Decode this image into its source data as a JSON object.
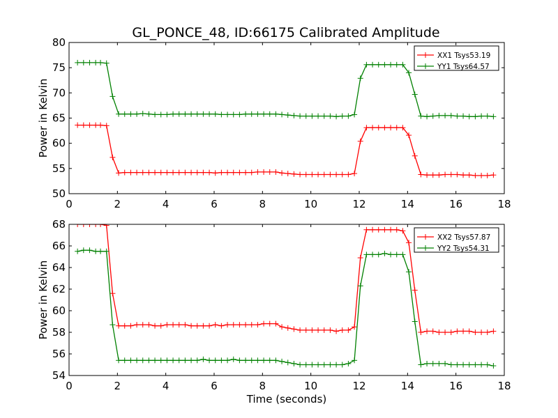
{
  "title": "GL_PONCE_48, ID:66175 Calibrated Amplitude",
  "chart_data": [
    {
      "type": "line",
      "xlabel": "",
      "ylabel": "Power in Kelvin",
      "xlim": [
        0,
        18
      ],
      "ylim": [
        50,
        80
      ],
      "xticks": [
        0,
        2,
        4,
        6,
        8,
        10,
        12,
        14,
        16,
        18
      ],
      "yticks": [
        50,
        55,
        60,
        65,
        70,
        75,
        80
      ],
      "legend_position": "top-right",
      "grid": false,
      "x": [
        0.35,
        0.6,
        0.85,
        1.1,
        1.3,
        1.55,
        1.8,
        2.05,
        2.3,
        2.55,
        2.8,
        3.05,
        3.3,
        3.55,
        3.8,
        4.05,
        4.3,
        4.55,
        4.8,
        5.05,
        5.3,
        5.55,
        5.8,
        6.05,
        6.3,
        6.55,
        6.8,
        7.05,
        7.3,
        7.55,
        7.8,
        8.05,
        8.3,
        8.55,
        8.8,
        9.05,
        9.3,
        9.55,
        9.8,
        10.05,
        10.3,
        10.55,
        10.8,
        11.05,
        11.3,
        11.55,
        11.8,
        12.05,
        12.3,
        12.55,
        12.8,
        13.05,
        13.3,
        13.55,
        13.8,
        14.05,
        14.3,
        14.55,
        14.8,
        15.05,
        15.3,
        15.55,
        15.8,
        16.05,
        16.3,
        16.55,
        16.8,
        17.05,
        17.3,
        17.55
      ],
      "series": [
        {
          "name": "XX1 Tsys53.19",
          "color": "#ff0000",
          "values": [
            63.6,
            63.6,
            63.6,
            63.6,
            63.6,
            63.5,
            57.2,
            54.1,
            54.2,
            54.2,
            54.2,
            54.2,
            54.2,
            54.2,
            54.2,
            54.2,
            54.2,
            54.2,
            54.2,
            54.2,
            54.2,
            54.2,
            54.2,
            54.1,
            54.2,
            54.2,
            54.2,
            54.2,
            54.2,
            54.2,
            54.3,
            54.3,
            54.3,
            54.3,
            54.1,
            54.0,
            53.9,
            53.8,
            53.8,
            53.8,
            53.8,
            53.8,
            53.8,
            53.8,
            53.8,
            53.8,
            54.0,
            60.4,
            63.1,
            63.1,
            63.1,
            63.1,
            63.1,
            63.1,
            63.1,
            61.6,
            57.5,
            53.8,
            53.7,
            53.7,
            53.7,
            53.8,
            53.8,
            53.8,
            53.7,
            53.7,
            53.6,
            53.6,
            53.6,
            53.7
          ]
        },
        {
          "name": "YY1 Tsys64.57",
          "color": "#008000",
          "values": [
            76.0,
            76.0,
            76.0,
            76.0,
            76.0,
            75.9,
            69.3,
            65.8,
            65.8,
            65.8,
            65.8,
            65.9,
            65.8,
            65.7,
            65.7,
            65.7,
            65.8,
            65.8,
            65.8,
            65.8,
            65.8,
            65.8,
            65.8,
            65.8,
            65.7,
            65.7,
            65.7,
            65.7,
            65.8,
            65.8,
            65.8,
            65.8,
            65.8,
            65.8,
            65.7,
            65.6,
            65.5,
            65.4,
            65.4,
            65.4,
            65.4,
            65.4,
            65.4,
            65.3,
            65.4,
            65.4,
            65.7,
            72.9,
            75.6,
            75.6,
            75.6,
            75.6,
            75.6,
            75.6,
            75.6,
            74.0,
            69.7,
            65.4,
            65.3,
            65.4,
            65.5,
            65.5,
            65.5,
            65.4,
            65.4,
            65.3,
            65.3,
            65.4,
            65.4,
            65.3
          ]
        }
      ]
    },
    {
      "type": "line",
      "xlabel": "Time (seconds)",
      "ylabel": "Power in Kelvin",
      "xlim": [
        0,
        18
      ],
      "ylim": [
        54,
        68
      ],
      "xticks": [
        0,
        2,
        4,
        6,
        8,
        10,
        12,
        14,
        16,
        18
      ],
      "yticks": [
        54,
        56,
        58,
        60,
        62,
        64,
        66,
        68
      ],
      "legend_position": "top-right",
      "grid": false,
      "x": [
        0.35,
        0.6,
        0.85,
        1.1,
        1.3,
        1.55,
        1.8,
        2.05,
        2.3,
        2.55,
        2.8,
        3.05,
        3.3,
        3.55,
        3.8,
        4.05,
        4.3,
        4.55,
        4.8,
        5.05,
        5.3,
        5.55,
        5.8,
        6.05,
        6.3,
        6.55,
        6.8,
        7.05,
        7.3,
        7.55,
        7.8,
        8.05,
        8.3,
        8.55,
        8.8,
        9.05,
        9.3,
        9.55,
        9.8,
        10.05,
        10.3,
        10.55,
        10.8,
        11.05,
        11.3,
        11.55,
        11.8,
        12.05,
        12.3,
        12.55,
        12.8,
        13.05,
        13.3,
        13.55,
        13.8,
        14.05,
        14.3,
        14.55,
        14.8,
        15.05,
        15.3,
        15.55,
        15.8,
        16.05,
        16.3,
        16.55,
        16.8,
        17.05,
        17.3,
        17.55
      ],
      "series": [
        {
          "name": "XX2 Tsys57.87",
          "color": "#ff0000",
          "values": [
            68.0,
            68.0,
            68.0,
            68.0,
            68.0,
            67.9,
            61.6,
            58.6,
            58.6,
            58.6,
            58.7,
            58.7,
            58.7,
            58.6,
            58.6,
            58.7,
            58.7,
            58.7,
            58.7,
            58.6,
            58.6,
            58.6,
            58.6,
            58.7,
            58.6,
            58.7,
            58.7,
            58.7,
            58.7,
            58.7,
            58.7,
            58.8,
            58.8,
            58.8,
            58.5,
            58.4,
            58.3,
            58.2,
            58.2,
            58.2,
            58.2,
            58.2,
            58.2,
            58.1,
            58.2,
            58.2,
            58.5,
            64.9,
            67.5,
            67.5,
            67.5,
            67.5,
            67.5,
            67.5,
            67.4,
            66.3,
            61.9,
            58.0,
            58.1,
            58.1,
            58.0,
            58.0,
            58.0,
            58.1,
            58.1,
            58.1,
            58.0,
            58.0,
            58.0,
            58.1
          ]
        },
        {
          "name": "YY2 Tsys54.31",
          "color": "#008000",
          "values": [
            65.5,
            65.6,
            65.6,
            65.5,
            65.5,
            65.5,
            58.7,
            55.4,
            55.4,
            55.4,
            55.4,
            55.4,
            55.4,
            55.4,
            55.4,
            55.4,
            55.4,
            55.4,
            55.4,
            55.4,
            55.4,
            55.5,
            55.4,
            55.4,
            55.4,
            55.4,
            55.5,
            55.4,
            55.4,
            55.4,
            55.4,
            55.4,
            55.4,
            55.4,
            55.3,
            55.2,
            55.1,
            55.0,
            55.0,
            55.0,
            55.0,
            55.0,
            55.0,
            55.0,
            55.0,
            55.1,
            55.4,
            62.3,
            65.2,
            65.2,
            65.2,
            65.3,
            65.2,
            65.2,
            65.2,
            63.6,
            59.0,
            55.0,
            55.1,
            55.1,
            55.1,
            55.1,
            55.0,
            55.0,
            55.0,
            55.0,
            55.0,
            55.0,
            55.0,
            54.9
          ]
        }
      ]
    }
  ]
}
